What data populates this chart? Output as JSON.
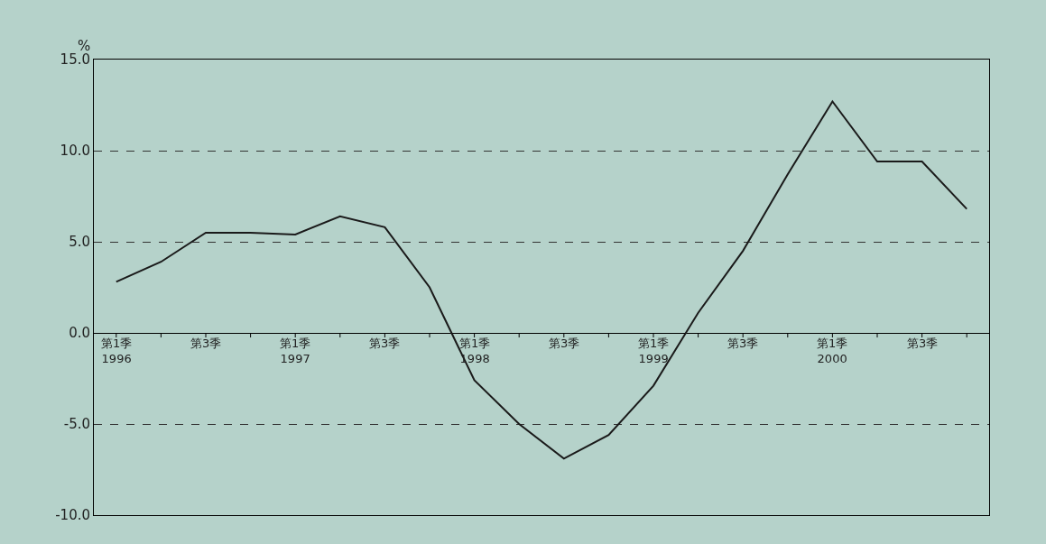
{
  "chart_data": {
    "type": "line",
    "ylabel": "%",
    "categories": [
      "第1季\n1996",
      null,
      "第3季",
      null,
      "第1季\n1997",
      null,
      "第3季",
      null,
      "第1季\n1998",
      null,
      "第3季",
      null,
      "第1季\n1999",
      null,
      "第3季",
      null,
      "第1季\n2000",
      null,
      "第3季",
      null
    ],
    "series": [
      {
        "color": "#1a1a1a",
        "values": [
          2.8,
          3.9,
          5.5,
          5.5,
          5.4,
          6.4,
          5.8,
          2.5,
          -2.6,
          -5.0,
          -6.9,
          -5.6,
          -2.9,
          1.1,
          4.5,
          8.7,
          12.7,
          9.4,
          9.4,
          6.8
        ]
      }
    ],
    "ylim": [
      -10,
      15
    ],
    "yticks": [
      {
        "value": -10,
        "label": "-10.0"
      },
      {
        "value": -5,
        "label": "-5.0"
      },
      {
        "value": 0,
        "label": "0.0"
      },
      {
        "value": 5,
        "label": "5.0"
      },
      {
        "value": 10,
        "label": "10.0"
      },
      {
        "value": 15,
        "label": "15.0"
      }
    ],
    "grid": "y",
    "marker": "none",
    "line_style": "solid"
  }
}
